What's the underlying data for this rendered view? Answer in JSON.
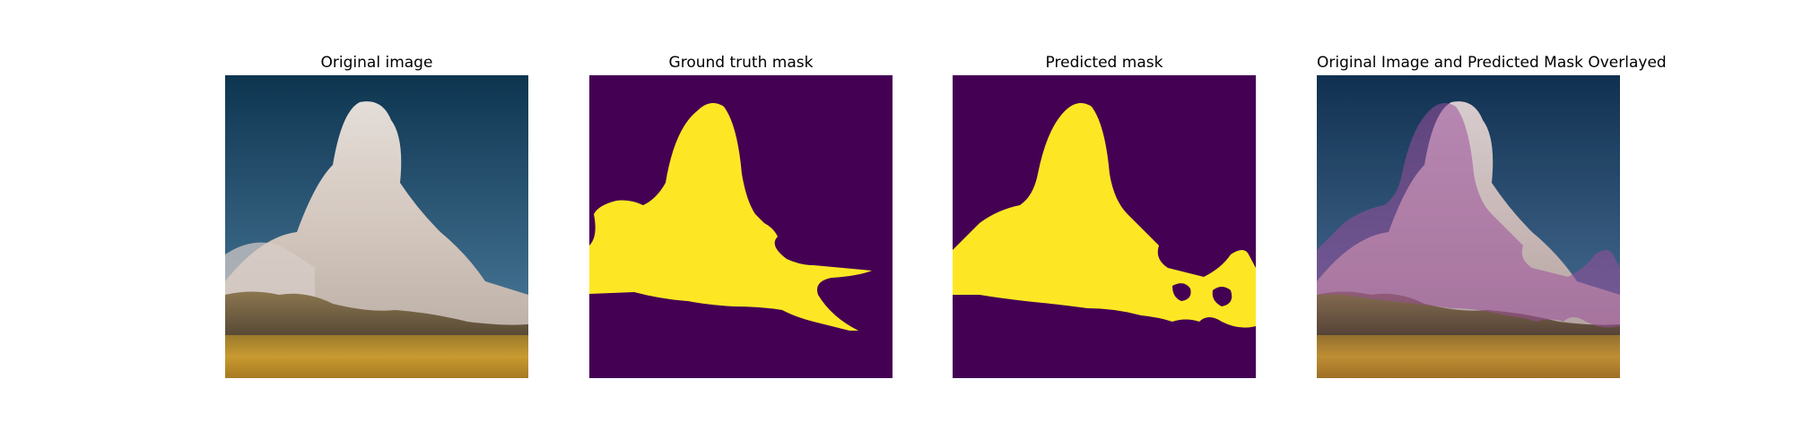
{
  "figure": {
    "panels": [
      {
        "title": "Original image"
      },
      {
        "title": "Ground truth mask"
      },
      {
        "title": "Predicted mask"
      },
      {
        "title": "Original Image and Predicted Mask Overlayed"
      }
    ]
  },
  "colors": {
    "mask_background": "#440154",
    "mask_foreground": "#fde725",
    "overlay_tint": "#b46ab4",
    "sky_top": "#0d3550",
    "sky_bottom": "#4f7794",
    "smoke": "#e8ddd6",
    "hills": "#6f5c3d",
    "field": "#b58a2a"
  }
}
